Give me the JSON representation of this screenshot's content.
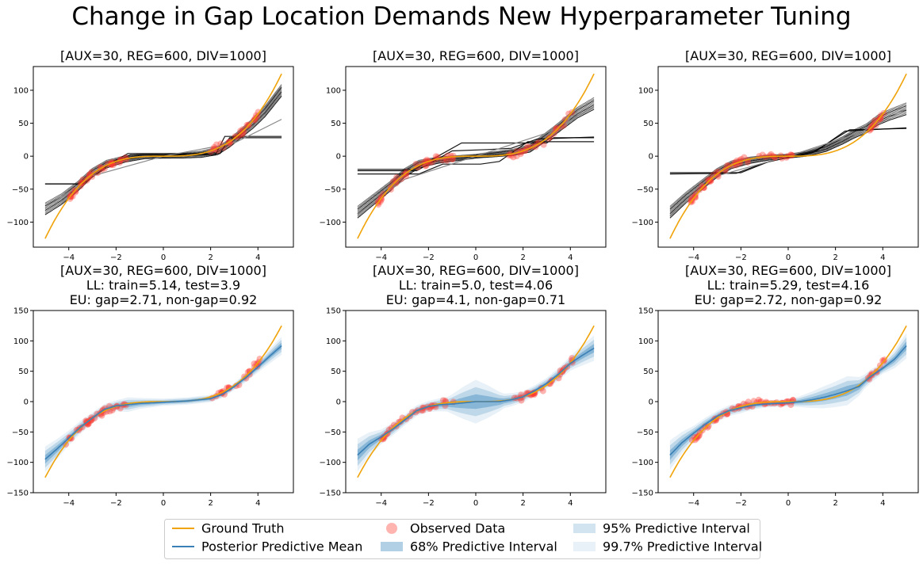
{
  "suptitle": "Change in Gap Location Demands New Hyperparameter Tuning",
  "colors": {
    "ground_truth": "#f0a30a",
    "mean": "#3a7fb5",
    "band68": "#1f77b4",
    "observed": "#ff3b30",
    "ensemble": "#000000"
  },
  "legend": {
    "items": [
      {
        "label": "Ground Truth",
        "kind": "line",
        "color": "#f0a30a"
      },
      {
        "label": "Posterior Predictive Mean",
        "kind": "line",
        "color": "#3a7fb5"
      },
      {
        "label": "Observed Data",
        "kind": "marker",
        "color": "#ff3b30"
      },
      {
        "label": "68% Predictive Interval",
        "kind": "patch",
        "color": "#1f77b4",
        "opacity": 0.35
      },
      {
        "label": "95% Predictive Interval",
        "kind": "patch",
        "color": "#1f77b4",
        "opacity": 0.2
      },
      {
        "label": "99.7% Predictive Interval",
        "kind": "patch",
        "color": "#1f77b4",
        "opacity": 0.1
      }
    ],
    "placement": "bottom-center"
  },
  "chart_data": [
    {
      "type": "line",
      "title": [
        "[AUX=30, REG=600, DIV=1000]"
      ],
      "xlim": [
        -5.5,
        5.5
      ],
      "ylim": [
        -138,
        136
      ],
      "xticks": [
        -4,
        -2,
        0,
        2,
        4
      ],
      "yticks": [
        -100,
        -50,
        0,
        50,
        100
      ],
      "gap": [
        -1.5,
        2.0
      ],
      "ensemble_anchors": [
        [
          -5,
          -80
        ],
        [
          -4.3,
          -65
        ],
        [
          -3.6,
          -45
        ],
        [
          -3.0,
          -25
        ],
        [
          -2.4,
          -12
        ],
        [
          -1.6,
          -4
        ],
        [
          -0.8,
          0
        ],
        [
          0,
          0
        ],
        [
          0.8,
          1
        ],
        [
          1.6,
          3
        ],
        [
          2.3,
          8
        ],
        [
          2.8,
          20
        ],
        [
          3.3,
          35
        ],
        [
          3.8,
          50
        ],
        [
          4.3,
          68
        ],
        [
          5,
          100
        ]
      ],
      "ensemble_flat_lines": [
        [
          [
            -5,
            -42
          ],
          [
            -3.4,
            -42
          ],
          [
            -2.2,
            -10
          ],
          [
            -1.5,
            4
          ],
          [
            2.4,
            4
          ],
          [
            2.8,
            28
          ],
          [
            5,
            28
          ]
        ],
        [
          [
            -5,
            -42
          ],
          [
            -3.6,
            -42
          ],
          [
            -2.6,
            -18
          ],
          [
            -1.4,
            2
          ],
          [
            2.2,
            2
          ],
          [
            2.6,
            30
          ],
          [
            5,
            30
          ]
        ]
      ],
      "ensemble_weak_slope": [
        [
          -5,
          -78
        ],
        [
          -3,
          -30
        ],
        [
          0,
          0
        ],
        [
          3,
          20
        ],
        [
          5,
          56
        ]
      ]
    },
    {
      "type": "line",
      "title": [
        "[AUX=30, REG=600, DIV=1000]"
      ],
      "xlim": [
        -5.5,
        5.5
      ],
      "ylim": [
        -138,
        136
      ],
      "xticks": [
        -4,
        -2,
        0,
        2,
        4
      ],
      "yticks": [
        -100,
        -50,
        0,
        50,
        100
      ],
      "gap": [
        -0.9,
        1.2
      ],
      "ensemble_anchors": [
        [
          -5,
          -85
        ],
        [
          -4.3,
          -65
        ],
        [
          -3.6,
          -45
        ],
        [
          -3.0,
          -25
        ],
        [
          -2.4,
          -12
        ],
        [
          -1.6,
          -6
        ],
        [
          -0.8,
          -3
        ],
        [
          0,
          0
        ],
        [
          0.8,
          3
        ],
        [
          1.6,
          6
        ],
        [
          2.3,
          12
        ],
        [
          2.8,
          25
        ],
        [
          3.3,
          38
        ],
        [
          3.8,
          52
        ],
        [
          4.3,
          66
        ],
        [
          5,
          80
        ]
      ],
      "ensemble_flat_lines": [
        [
          [
            -5,
            -20
          ],
          [
            -2.6,
            -20
          ],
          [
            -1.6,
            0
          ],
          [
            -0.6,
            20
          ],
          [
            3.0,
            20
          ],
          [
            3.3,
            28
          ],
          [
            5,
            28
          ]
        ],
        [
          [
            -5,
            -27
          ],
          [
            -2.4,
            -27
          ],
          [
            -1.4,
            -12
          ],
          [
            0.2,
            -12
          ],
          [
            1.0,
            -8
          ],
          [
            2.2,
            22
          ],
          [
            5,
            22
          ]
        ],
        [
          [
            -5,
            -22
          ],
          [
            -2.5,
            -22
          ],
          [
            -1.0,
            8
          ],
          [
            0.5,
            10
          ],
          [
            1.5,
            12
          ],
          [
            2.6,
            26
          ],
          [
            5,
            29
          ]
        ]
      ],
      "ensemble_weak_slope": [
        [
          -5,
          -88
        ],
        [
          -3,
          -35
        ],
        [
          0,
          0
        ],
        [
          3,
          35
        ],
        [
          5,
          74
        ]
      ]
    },
    {
      "type": "line",
      "title": [
        "[AUX=30, REG=600, DIV=1000]"
      ],
      "xlim": [
        -5.5,
        5.5
      ],
      "ylim": [
        -138,
        136
      ],
      "xticks": [
        -4,
        -2,
        0,
        2,
        4
      ],
      "yticks": [
        -100,
        -50,
        0,
        50,
        100
      ],
      "gap": [
        0.3,
        3.3
      ],
      "ensemble_anchors": [
        [
          -5,
          -85
        ],
        [
          -4.3,
          -62
        ],
        [
          -3.6,
          -42
        ],
        [
          -3.0,
          -25
        ],
        [
          -2.4,
          -13
        ],
        [
          -1.6,
          -6
        ],
        [
          -0.8,
          -2
        ],
        [
          0,
          0
        ],
        [
          0.8,
          4
        ],
        [
          1.6,
          12
        ],
        [
          2.3,
          24
        ],
        [
          2.8,
          34
        ],
        [
          3.3,
          42
        ],
        [
          3.8,
          55
        ],
        [
          4.3,
          63
        ],
        [
          5,
          72
        ]
      ],
      "ensemble_flat_lines": [
        [
          [
            -5,
            -25
          ],
          [
            -2.0,
            -25
          ],
          [
            -0.8,
            -8
          ],
          [
            1.0,
            5
          ],
          [
            2.6,
            40
          ],
          [
            5,
            42
          ]
        ],
        [
          [
            -5,
            -27
          ],
          [
            -2.2,
            -26
          ],
          [
            -1.0,
            -10
          ],
          [
            1.2,
            8
          ],
          [
            2.4,
            38
          ],
          [
            5,
            43
          ]
        ]
      ],
      "ensemble_weak_slope": [
        [
          -5,
          -90
        ],
        [
          -3,
          -30
        ],
        [
          0,
          0
        ],
        [
          3,
          35
        ],
        [
          5,
          72
        ]
      ]
    },
    {
      "type": "area",
      "title": [
        "[AUX=30, REG=600, DIV=1000]",
        "LL: train=5.14, test=3.9",
        "EU: gap=2.71, non-gap=0.92"
      ],
      "xlim": [
        -5.5,
        5.5
      ],
      "ylim": [
        -150,
        150
      ],
      "xticks": [
        -4,
        -2,
        0,
        2,
        4
      ],
      "yticks": [
        -150,
        -100,
        -50,
        0,
        50,
        100,
        150
      ],
      "gap": [
        -1.5,
        2.0
      ],
      "mean": [
        [
          -5,
          -95
        ],
        [
          -4.5,
          -78
        ],
        [
          -4,
          -60
        ],
        [
          -3.5,
          -42
        ],
        [
          -3,
          -27
        ],
        [
          -2.5,
          -13
        ],
        [
          -2,
          -7
        ],
        [
          -1.5,
          -5
        ],
        [
          -1,
          -3
        ],
        [
          -0.5,
          -2
        ],
        [
          0,
          -1
        ],
        [
          0.5,
          0
        ],
        [
          1,
          1
        ],
        [
          1.5,
          3
        ],
        [
          2,
          5
        ],
        [
          2.5,
          12
        ],
        [
          3,
          25
        ],
        [
          3.5,
          40
        ],
        [
          4,
          57
        ],
        [
          4.5,
          75
        ],
        [
          5,
          92
        ]
      ],
      "sigma": [
        [
          -5,
          7
        ],
        [
          -4,
          4
        ],
        [
          -3,
          3
        ],
        [
          -2,
          3
        ],
        [
          -1.5,
          4
        ],
        [
          -1,
          3
        ],
        [
          0,
          2
        ],
        [
          1,
          2
        ],
        [
          2,
          2
        ],
        [
          3,
          2
        ],
        [
          4,
          3
        ],
        [
          5,
          5
        ]
      ]
    },
    {
      "type": "area",
      "title": [
        "[AUX=30, REG=600, DIV=1000]",
        "LL: train=5.0, test=4.06",
        "EU: gap=4.1, non-gap=0.71"
      ],
      "xlim": [
        -5.5,
        5.5
      ],
      "ylim": [
        -150,
        150
      ],
      "xticks": [
        -4,
        -2,
        0,
        2,
        4
      ],
      "yticks": [
        -150,
        -100,
        -50,
        0,
        50,
        100,
        150
      ],
      "gap": [
        -0.9,
        1.2
      ],
      "mean": [
        [
          -5,
          -88
        ],
        [
          -4.5,
          -70
        ],
        [
          -4,
          -58
        ],
        [
          -3.5,
          -45
        ],
        [
          -3,
          -30
        ],
        [
          -2.5,
          -15
        ],
        [
          -2,
          -8
        ],
        [
          -1.5,
          -5
        ],
        [
          -1,
          -4
        ],
        [
          -0.5,
          -2
        ],
        [
          0,
          0
        ],
        [
          0.5,
          0
        ],
        [
          1,
          0
        ],
        [
          1.5,
          3
        ],
        [
          2,
          8
        ],
        [
          2.5,
          18
        ],
        [
          3,
          30
        ],
        [
          3.5,
          45
        ],
        [
          4,
          63
        ],
        [
          4.5,
          76
        ],
        [
          5,
          88
        ]
      ],
      "sigma": [
        [
          -5,
          9
        ],
        [
          -4,
          4
        ],
        [
          -3,
          3
        ],
        [
          -2,
          3
        ],
        [
          -1.2,
          4
        ],
        [
          -0.5,
          9
        ],
        [
          0,
          12
        ],
        [
          0.5,
          9
        ],
        [
          1.2,
          4
        ],
        [
          2,
          3
        ],
        [
          3,
          3
        ],
        [
          4,
          4
        ],
        [
          5,
          7
        ]
      ]
    },
    {
      "type": "area",
      "title": [
        "[AUX=30, REG=600, DIV=1000]",
        "LL: train=5.29, test=4.16",
        "EU: gap=2.72, non-gap=0.92"
      ],
      "xlim": [
        -5.5,
        5.5
      ],
      "ylim": [
        -150,
        150
      ],
      "xticks": [
        -4,
        -2,
        0,
        2,
        4
      ],
      "yticks": [
        -150,
        -100,
        -50,
        0,
        50,
        100,
        150
      ],
      "gap": [
        0.3,
        3.3
      ],
      "mean": [
        [
          -5,
          -88
        ],
        [
          -4.5,
          -68
        ],
        [
          -4,
          -52
        ],
        [
          -3.5,
          -37
        ],
        [
          -3,
          -24
        ],
        [
          -2.5,
          -15
        ],
        [
          -2,
          -10
        ],
        [
          -1.5,
          -6
        ],
        [
          -1,
          -4
        ],
        [
          -0.5,
          -3
        ],
        [
          0,
          -2
        ],
        [
          0.5,
          0
        ],
        [
          1,
          3
        ],
        [
          1.5,
          7
        ],
        [
          2,
          12
        ],
        [
          2.5,
          18
        ],
        [
          3,
          25
        ],
        [
          3.5,
          42
        ],
        [
          4,
          55
        ],
        [
          4.5,
          70
        ],
        [
          5,
          92
        ]
      ],
      "sigma": [
        [
          -5,
          8
        ],
        [
          -4,
          4
        ],
        [
          -3,
          3
        ],
        [
          -2,
          3
        ],
        [
          -1,
          2
        ],
        [
          0,
          2
        ],
        [
          0.5,
          3
        ],
        [
          1.5,
          6
        ],
        [
          2.5,
          8
        ],
        [
          3.2,
          4
        ],
        [
          4,
          3
        ],
        [
          5,
          7
        ]
      ]
    }
  ]
}
